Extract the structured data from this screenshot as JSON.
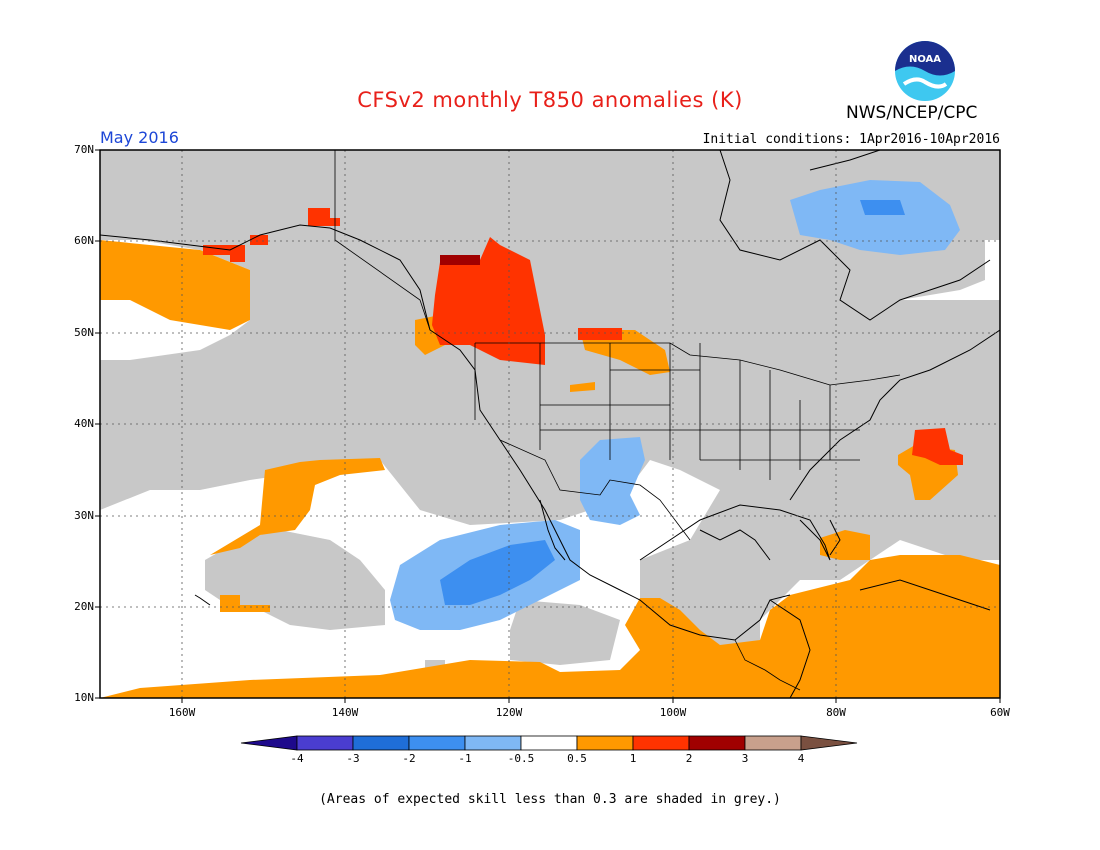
{
  "title": "CFSv2 monthly T850 anomalies (K)",
  "organization": "NWS/NCEP/CPC",
  "logo_text": "NOAA",
  "period": "May 2016",
  "initial_conditions": "Initial conditions: 1Apr2016-10Apr2016",
  "lat_labels": [
    "70N",
    "60N",
    "50N",
    "40N",
    "30N",
    "20N",
    "10N"
  ],
  "lon_labels": [
    "160W",
    "140W",
    "120W",
    "100W",
    "80W",
    "60W"
  ],
  "colorbar": {
    "labels": [
      "-4",
      "-3",
      "-2",
      "-1",
      "-0.5",
      "0.5",
      "1",
      "2",
      "3",
      "4"
    ],
    "colors": [
      "#1e0a8c",
      "#4a3dd0",
      "#1f6ed8",
      "#3d8ff0",
      "#7fb8f5",
      "#ffffff",
      "#ff9900",
      "#ff3300",
      "#a00000",
      "#c8a08c",
      "#7a5040"
    ]
  },
  "note": "(Areas of expected skill less than 0.3 are shaded in grey.)",
  "colors": {
    "grey_low_skill": "#c8c8c8",
    "positive_0_5_to_1": "#ff9900",
    "positive_1_to_2": "#ff3300",
    "positive_2_to_3": "#a00000",
    "negative_minus1_to_minus0_5": "#7fb8f5",
    "negative_minus2_to_minus1": "#3d8ff0"
  }
}
